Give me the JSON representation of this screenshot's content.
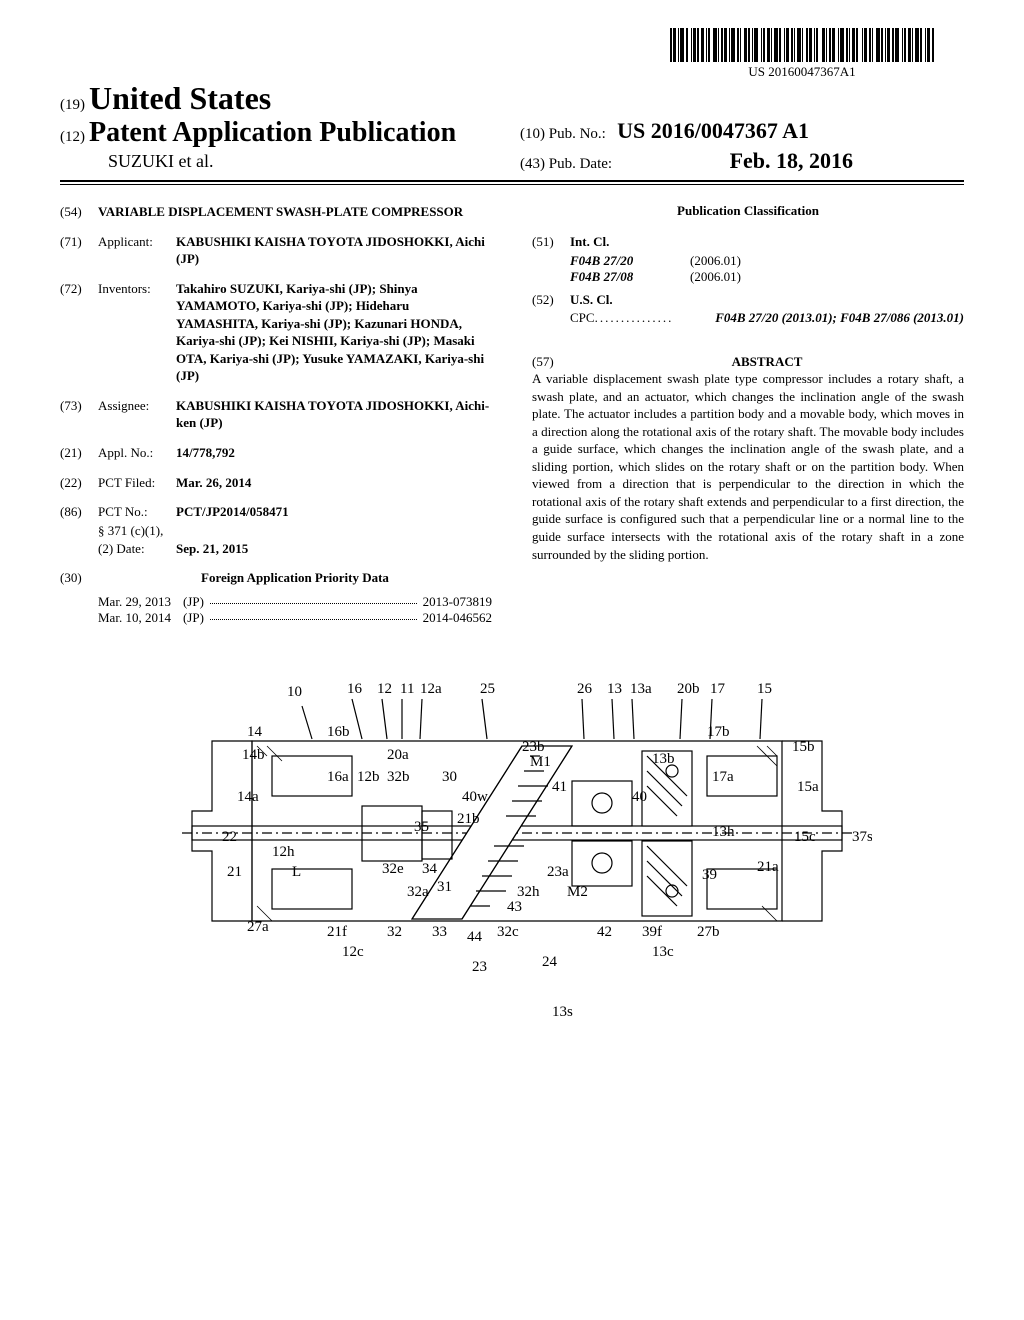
{
  "barcode_text": "US 20160047367A1",
  "header": {
    "num19": "(19)",
    "country": "United States",
    "num12": "(12)",
    "doc_type": "Patent Application Publication",
    "authors": "SUZUKI et al.",
    "num10": "(10)",
    "pub_no_label": "Pub. No.:",
    "pub_no": "US 2016/0047367 A1",
    "num43": "(43)",
    "pub_date_label": "Pub. Date:",
    "pub_date": "Feb. 18, 2016"
  },
  "left_col": {
    "f54": {
      "num": "(54)",
      "title": "VARIABLE DISPLACEMENT SWASH-PLATE COMPRESSOR"
    },
    "f71": {
      "num": "(71)",
      "label": "Applicant:",
      "body": "KABUSHIKI KAISHA TOYOTA JIDOSHOKKI, Aichi (JP)"
    },
    "f72": {
      "num": "(72)",
      "label": "Inventors:",
      "body": "Takahiro SUZUKI, Kariya-shi (JP); Shinya YAMAMOTO, Kariya-shi (JP); Hideharu YAMASHITA, Kariya-shi (JP); Kazunari HONDA, Kariya-shi (JP); Kei NISHII, Kariya-shi (JP); Masaki OTA, Kariya-shi (JP); Yusuke YAMAZAKI, Kariya-shi (JP)"
    },
    "f73": {
      "num": "(73)",
      "label": "Assignee:",
      "body": "KABUSHIKI KAISHA TOYOTA JIDOSHOKKI, Aichi-ken (JP)"
    },
    "f21": {
      "num": "(21)",
      "label": "Appl. No.:",
      "body": "14/778,792"
    },
    "f22": {
      "num": "(22)",
      "label": "PCT Filed:",
      "body": "Mar. 26, 2014"
    },
    "f86": {
      "num": "(86)",
      "label": "PCT No.:",
      "body": "PCT/JP2014/058471",
      "s371_label": "§ 371 (c)(1),",
      "s371_date_label": "(2) Date:",
      "s371_date": "Sep. 21, 2015"
    },
    "f30": {
      "num": "(30)",
      "title": "Foreign Application Priority Data"
    },
    "priority": [
      {
        "date": "Mar. 29, 2013",
        "country": "(JP)",
        "appno": "2013-073819"
      },
      {
        "date": "Mar. 10, 2014",
        "country": "(JP)",
        "appno": "2014-046562"
      }
    ]
  },
  "right_col": {
    "classification_title": "Publication Classification",
    "f51": {
      "num": "(51)",
      "label": "Int. Cl."
    },
    "intcl": [
      {
        "code": "F04B 27/20",
        "ver": "(2006.01)"
      },
      {
        "code": "F04B 27/08",
        "ver": "(2006.01)"
      }
    ],
    "f52": {
      "num": "(52)",
      "label": "U.S. Cl."
    },
    "cpc_label": "CPC",
    "cpc_dots": " ............... ",
    "cpc_body": "F04B 27/20 (2013.01); F04B 27/086 (2013.01)",
    "f57": {
      "num": "(57)",
      "title": "ABSTRACT"
    },
    "abstract": "A variable displacement swash plate type compressor includes a rotary shaft, a swash plate, and an actuator, which changes the inclination angle of the swash plate. The actuator includes a partition body and a movable body, which moves in a direction along the rotational axis of the rotary shaft. The movable body includes a guide surface, which changes the inclination angle of the swash plate, and a sliding portion, which slides on the rotary shaft or on the partition body. When viewed from a direction that is perpendicular to the direction in which the rotational axis of the rotary shaft extends and perpendicular to a first direction, the guide surface is configured such that a perpendicular line or a normal line to the guide surface intersects with the rotational axis of the rotary shaft in a zone surrounded by the sliding portion."
  },
  "figure": {
    "labels": [
      "10",
      "16",
      "12",
      "11",
      "12a",
      "25",
      "26",
      "13",
      "13a",
      "20b",
      "17",
      "15",
      "14",
      "16b",
      "17b",
      "15b",
      "14b",
      "20a",
      "23b",
      "13b",
      "14a",
      "16a",
      "12b",
      "32b",
      "30",
      "M1",
      "41",
      "17a",
      "15a",
      "40w",
      "40",
      "22",
      "35",
      "21b",
      "13h",
      "15c",
      "37s",
      "12h",
      "21",
      "L",
      "32e",
      "34",
      "23a",
      "39",
      "21a",
      "32a",
      "31",
      "32h",
      "M2",
      "27a",
      "21f",
      "32",
      "33",
      "44",
      "32c",
      "43",
      "42",
      "39f",
      "27b",
      "12c",
      "23",
      "24",
      "13c",
      "13s"
    ]
  }
}
